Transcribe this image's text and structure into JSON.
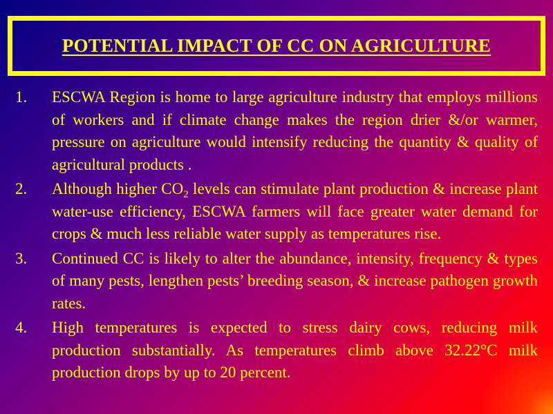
{
  "slide": {
    "title": "POTENTIAL IMPACT OF CC ON AGRICULTURE",
    "colors": {
      "text": "#ffff00",
      "border": "#ffff00",
      "background_start": "#000080",
      "background_end": "#ff0000"
    },
    "items": [
      {
        "number": "1.",
        "text": "ESCWA Region is home to large agriculture industry that employs millions of workers and if climate change makes the region drier &/or warmer, pressure on agriculture would intensify reducing the quantity & quality of agricultural products ."
      },
      {
        "number": "2.",
        "text_before": "Although higher CO",
        "subscript": "2",
        "text_after": " levels can stimulate plant production & increase plant water-use efficiency, ESCWA farmers will face greater water demand for crops & much less reliable water supply as temperatures rise."
      },
      {
        "number": "3.",
        "text": "Continued CC is likely to alter the abundance, intensity, frequency & types of many pests, lengthen pests’ breeding season, & increase pathogen growth rates."
      },
      {
        "number": "4.",
        "text": "High temperatures is expected to stress dairy cows, reducing milk production substantially.  As temperatures climb above 32.22°C milk production drops by up to 20 percent."
      }
    ]
  }
}
